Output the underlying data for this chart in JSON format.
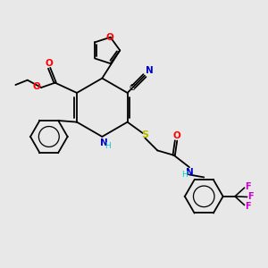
{
  "background_color": "#e8e8e8",
  "colors": {
    "C": "#000000",
    "N": "#0000cc",
    "O": "#ff0000",
    "S": "#b8b800",
    "F": "#cc00cc",
    "H_color": "#00cccc"
  },
  "figsize": [
    3.0,
    3.0
  ],
  "dpi": 100
}
